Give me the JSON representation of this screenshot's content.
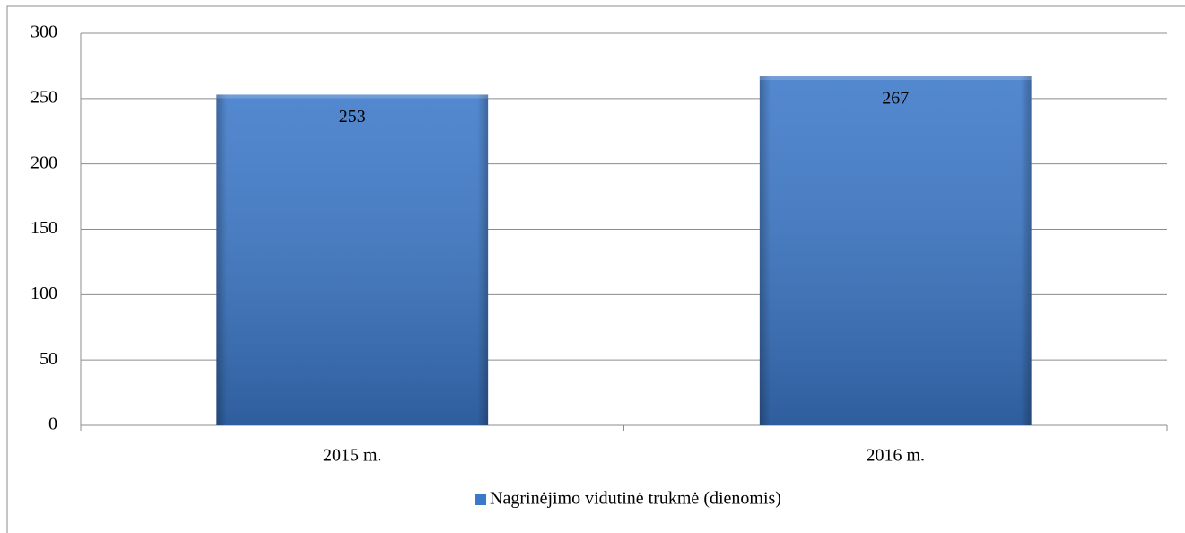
{
  "chart_data": {
    "type": "bar",
    "categories": [
      "2015 m.",
      "2016 m."
    ],
    "series": [
      {
        "name": "Nagrinėjimo vidutinė trukmė (dienomis)",
        "color": "#3b78c9",
        "values": [
          253,
          267
        ]
      }
    ],
    "ylim": [
      0,
      300
    ],
    "yticks": [
      0,
      50,
      100,
      150,
      200,
      250,
      300
    ],
    "grid": true,
    "legend": "bottom"
  }
}
